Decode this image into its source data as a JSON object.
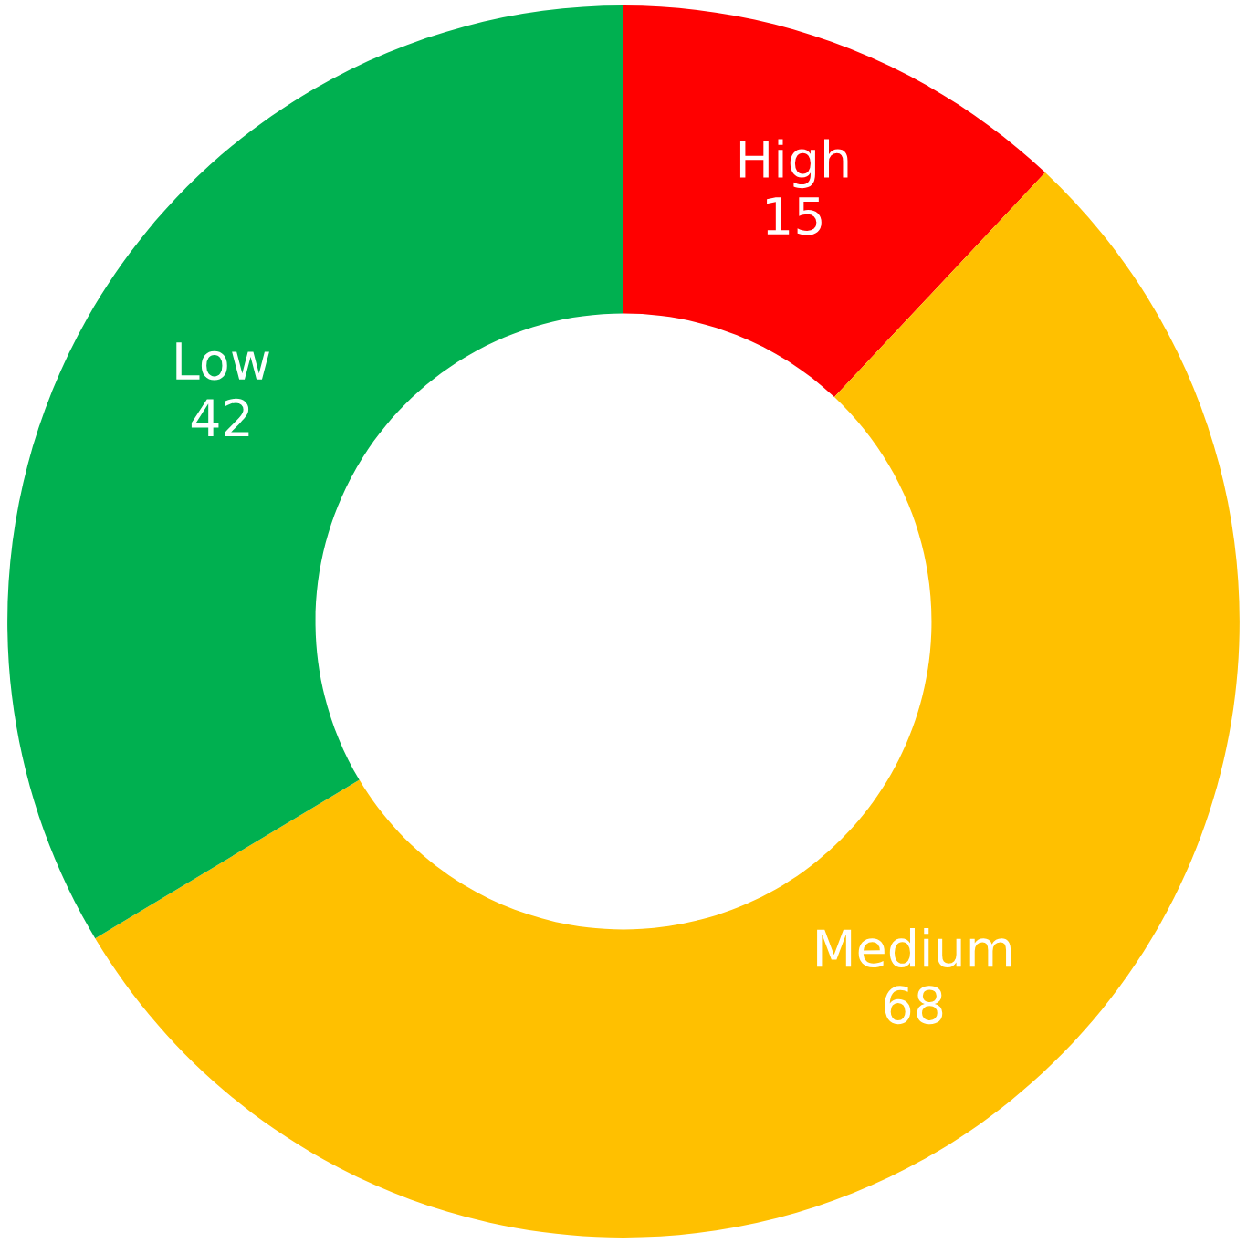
{
  "chart_data": {
    "type": "donut",
    "categories": [
      "High",
      "Medium",
      "Low"
    ],
    "values": [
      15,
      68,
      42
    ],
    "colors": [
      "#ff0000",
      "#ffc000",
      "#00b050"
    ],
    "data_labels": true
  }
}
